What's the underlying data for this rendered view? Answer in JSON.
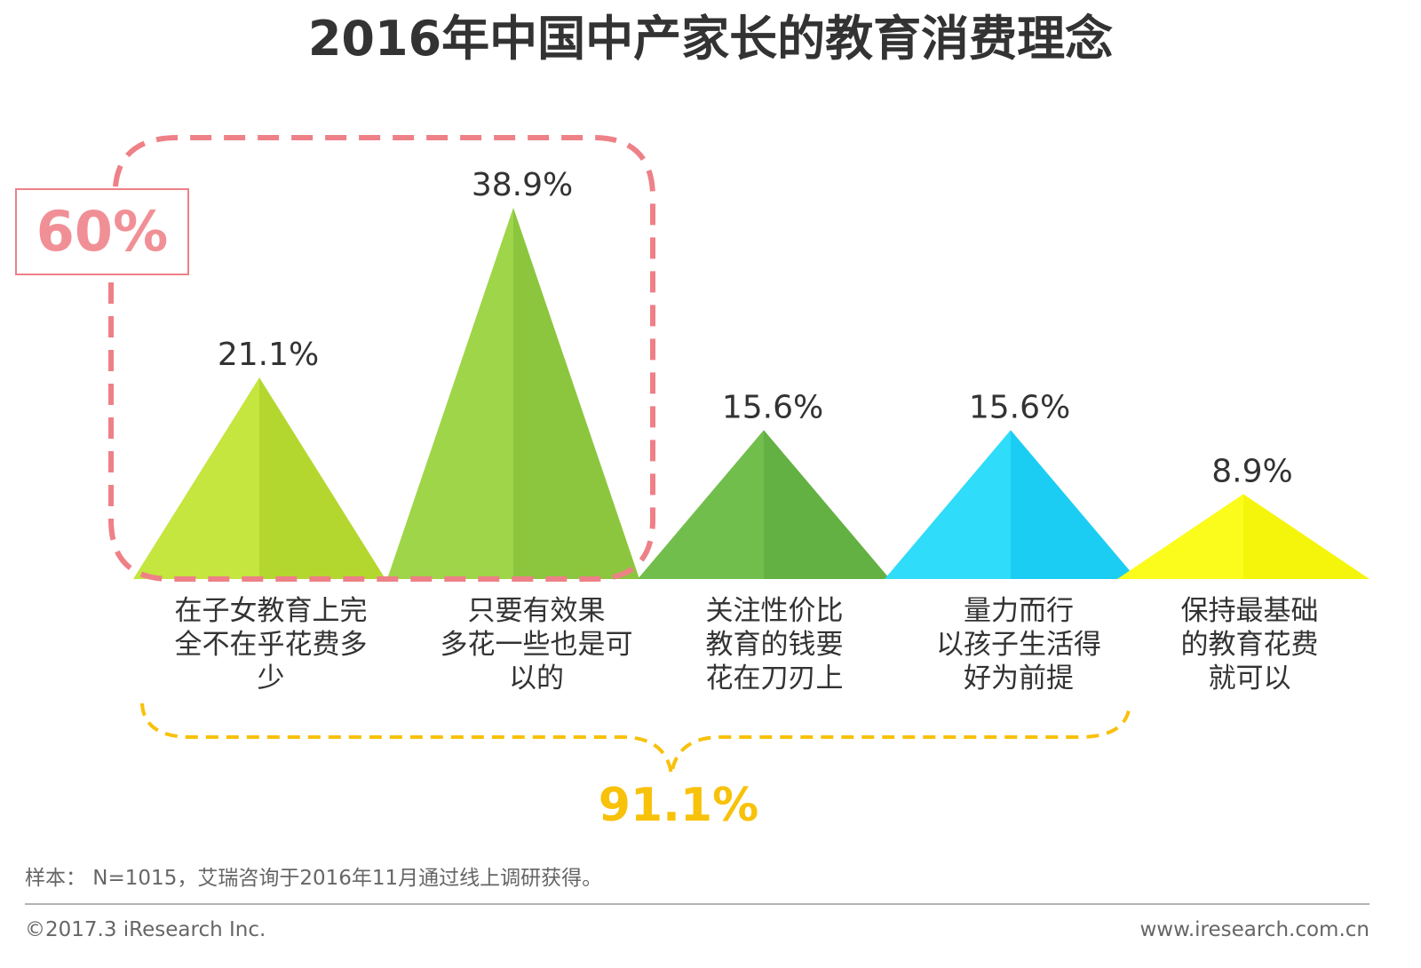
{
  "chart_data": {
    "type": "bar",
    "title": "2016年中国中产家长的教育消费理念",
    "categories": [
      [
        "在子女教育上完",
        "全不在乎花费多",
        "少"
      ],
      [
        "只要有效果",
        "多花一些也是可",
        "以的"
      ],
      [
        "关注性价比",
        "教育的钱要",
        "花在刀刃上"
      ],
      [
        "量力而行",
        "以孩子生活得",
        "好为前提"
      ],
      [
        "保持最基础",
        "的教育花费",
        "就可以"
      ]
    ],
    "values": [
      21.1,
      38.9,
      15.6,
      15.6,
      8.9
    ],
    "value_labels": [
      "21.1%",
      "38.9%",
      "15.6%",
      "15.6%",
      "8.9%"
    ],
    "ylim": [
      0,
      45
    ],
    "colors": [
      [
        "#c5e53f",
        "#b4d72f"
      ],
      [
        "#9fd548",
        "#8cc63e"
      ],
      [
        "#72be4c",
        "#63b043"
      ],
      [
        "#2fdcf9",
        "#1ccdf3"
      ],
      [
        "#fcfc1c",
        "#f5f50c"
      ]
    ],
    "annotations": {
      "group1_label": "60%",
      "group1_color": "#ee8087",
      "group2_label": "91.1%",
      "group2_color": "#f8c10a"
    }
  },
  "footer": {
    "source": "样本： N=1015，艾瑞咨询于2016年11月通过线上调研获得。",
    "copyright": "©2017.3  iResearch Inc.",
    "website": "www.iresearch.com.cn"
  }
}
